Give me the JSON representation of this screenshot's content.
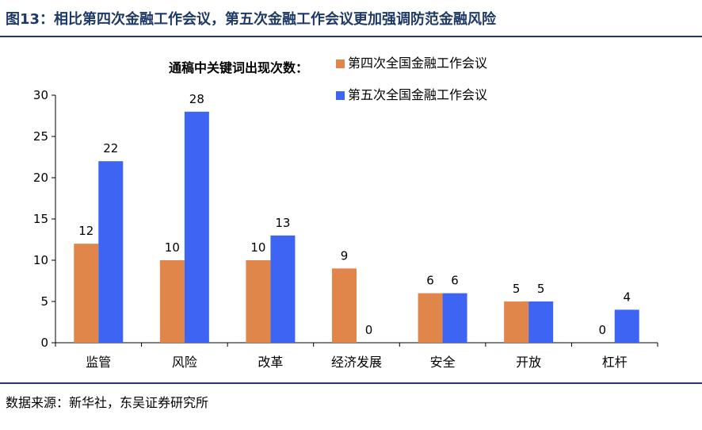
{
  "figure": {
    "title": "图13：相比第四次金融工作会议，第五次金融工作会议更加强调防范金融风险",
    "source": "数据来源：新华社，东吴证券研究所"
  },
  "colors": {
    "header": "#1f3a68",
    "series_1": "#e0864a",
    "series_2": "#3d64f2"
  },
  "chart_data": {
    "type": "bar",
    "title": "",
    "legend_title": "通稿中关键词出现次数：",
    "legend_position": "top-right",
    "categories": [
      "监管",
      "风险",
      "改革",
      "经济发展",
      "安全",
      "开放",
      "杠杆"
    ],
    "series": [
      {
        "name": "第四次全国金融工作会议",
        "values": [
          12,
          10,
          10,
          9,
          6,
          5,
          0
        ]
      },
      {
        "name": "第五次全国金融工作会议",
        "values": [
          22,
          28,
          13,
          0,
          6,
          5,
          4
        ]
      }
    ],
    "yticks": [
      0,
      5,
      10,
      15,
      20,
      25,
      30
    ],
    "ylim": [
      0,
      30
    ],
    "xlabel": "",
    "ylabel": "",
    "grid": false
  }
}
